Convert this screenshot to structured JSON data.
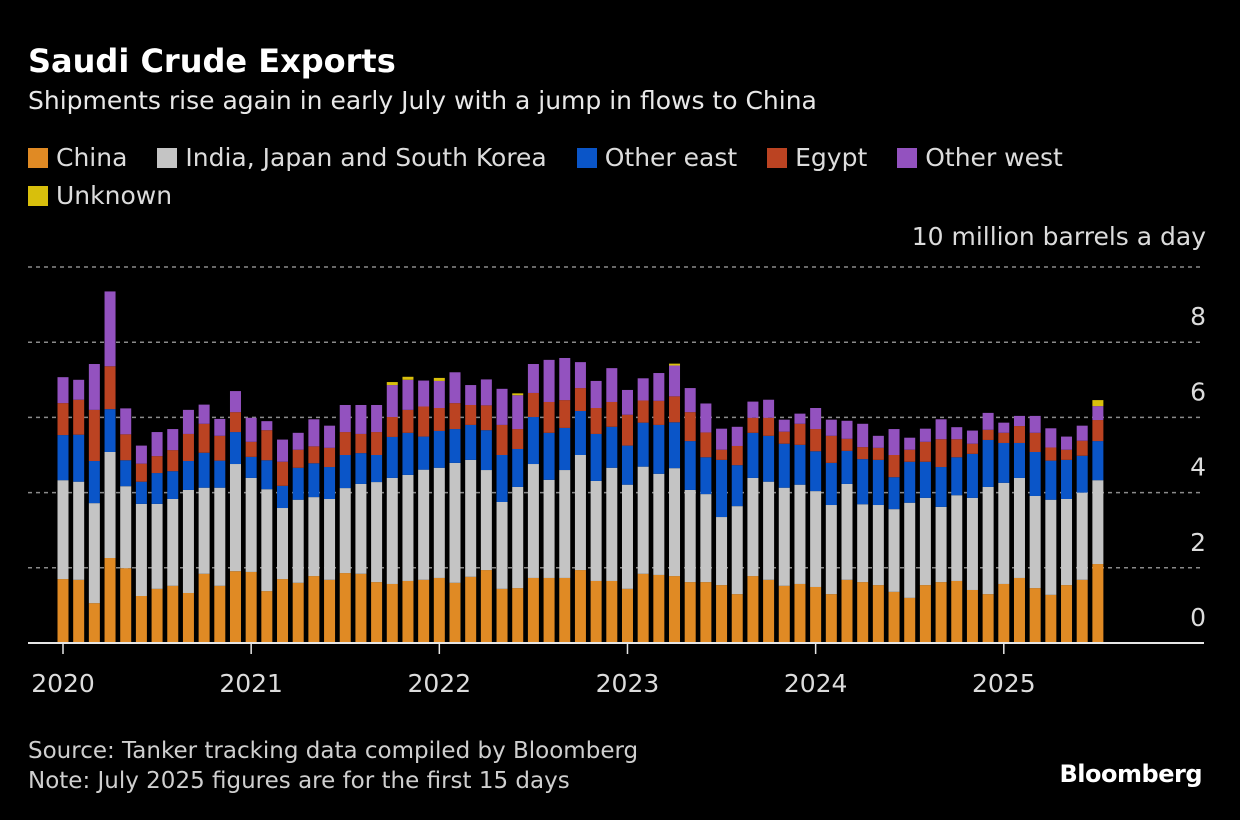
{
  "header": {
    "title": "Saudi Crude Exports",
    "subtitle": "Shipments rise again in early July with a jump in flows to China"
  },
  "legend": [
    {
      "label": "China",
      "color": "#e08a24"
    },
    {
      "label": "India, Japan and South Korea",
      "color": "#c4c4c4"
    },
    {
      "label": "Other east",
      "color": "#0a55c8"
    },
    {
      "label": "Egypt",
      "color": "#bb4322"
    },
    {
      "label": "Other west",
      "color": "#9352bf"
    },
    {
      "label": "Unknown",
      "color": "#d8bf0c"
    }
  ],
  "footer": {
    "source": "Source: Tanker tracking data compiled by Bloomberg",
    "note": "Note: July 2025 figures are for the first 15 days",
    "brand": "Bloomberg"
  },
  "chart_data": {
    "type": "bar",
    "stacked": true,
    "title": "Saudi Crude Exports",
    "subtitle": "Shipments rise again in early July with a jump in flows to China",
    "xlabel": "",
    "ylabel": "10 million barrels a day",
    "unit_label": "10 million barrels a day",
    "ylim": [
      0,
      10
    ],
    "yticks": [
      0,
      2,
      4,
      6,
      8,
      10
    ],
    "ytick_labels": [
      "0",
      "2",
      "4",
      "6",
      "8"
    ],
    "y_axis_side": "right",
    "grid": true,
    "legend_position": "top",
    "x_start": "2020-01",
    "x_end": "2025-07",
    "frequency": "monthly",
    "xtick_labels": [
      "2020",
      "2021",
      "2022",
      "2023",
      "2024",
      "2025"
    ],
    "categories": [
      "2020-01",
      "2020-02",
      "2020-03",
      "2020-04",
      "2020-05",
      "2020-06",
      "2020-07",
      "2020-08",
      "2020-09",
      "2020-10",
      "2020-11",
      "2020-12",
      "2021-01",
      "2021-02",
      "2021-03",
      "2021-04",
      "2021-05",
      "2021-06",
      "2021-07",
      "2021-08",
      "2021-09",
      "2021-10",
      "2021-11",
      "2021-12",
      "2022-01",
      "2022-02",
      "2022-03",
      "2022-04",
      "2022-05",
      "2022-06",
      "2022-07",
      "2022-08",
      "2022-09",
      "2022-10",
      "2022-11",
      "2022-12",
      "2023-01",
      "2023-02",
      "2023-03",
      "2023-04",
      "2023-05",
      "2023-06",
      "2023-07",
      "2023-08",
      "2023-09",
      "2023-10",
      "2023-11",
      "2023-12",
      "2024-01",
      "2024-02",
      "2024-03",
      "2024-04",
      "2024-05",
      "2024-06",
      "2024-07",
      "2024-08",
      "2024-09",
      "2024-10",
      "2024-11",
      "2024-12",
      "2025-01",
      "2025-02",
      "2025-03",
      "2025-04",
      "2025-05",
      "2025-06",
      "2025-07"
    ],
    "series": [
      {
        "name": "China",
        "color": "#e08a24",
        "values": [
          1.7,
          1.68,
          1.06,
          2.26,
          1.99,
          1.25,
          1.44,
          1.52,
          1.33,
          1.84,
          1.52,
          1.91,
          1.89,
          1.38,
          1.7,
          1.6,
          1.78,
          1.68,
          1.86,
          1.84,
          1.62,
          1.57,
          1.65,
          1.68,
          1.73,
          1.6,
          1.76,
          1.94,
          1.44,
          1.46,
          1.73,
          1.73,
          1.73,
          1.94,
          1.65,
          1.65,
          1.44,
          1.84,
          1.81,
          1.78,
          1.62,
          1.62,
          1.54,
          1.3,
          1.78,
          1.68,
          1.52,
          1.57,
          1.49,
          1.3,
          1.68,
          1.62,
          1.54,
          1.36,
          1.2,
          1.54,
          1.62,
          1.65,
          1.41,
          1.3,
          1.57,
          1.73,
          1.46,
          1.28,
          1.54,
          1.68,
          2.1
        ]
      },
      {
        "name": "India, Japan and South Korea",
        "color": "#c4c4c4",
        "values": [
          2.63,
          2.61,
          2.66,
          2.82,
          2.18,
          2.45,
          2.26,
          2.31,
          2.74,
          2.29,
          2.61,
          2.85,
          2.5,
          2.71,
          1.89,
          2.21,
          2.1,
          2.15,
          2.26,
          2.39,
          2.66,
          2.82,
          2.82,
          2.93,
          2.93,
          3.19,
          3.11,
          2.66,
          2.31,
          2.69,
          3.03,
          2.61,
          2.87,
          3.06,
          2.66,
          3.01,
          2.77,
          2.85,
          2.69,
          2.87,
          2.45,
          2.34,
          1.81,
          2.34,
          2.61,
          2.61,
          2.61,
          2.64,
          2.55,
          2.37,
          2.55,
          2.07,
          2.13,
          2.2,
          2.53,
          2.32,
          2.0,
          2.28,
          2.45,
          2.85,
          2.69,
          2.66,
          2.45,
          2.53,
          2.29,
          2.32,
          2.23
        ]
      },
      {
        "name": "Other east",
        "color": "#0a55c8",
        "values": [
          1.2,
          1.25,
          1.12,
          1.14,
          0.69,
          0.59,
          0.82,
          0.74,
          0.77,
          0.93,
          0.72,
          0.85,
          0.56,
          0.77,
          0.59,
          0.85,
          0.9,
          0.85,
          0.88,
          0.82,
          0.72,
          1.09,
          1.12,
          0.88,
          0.98,
          0.9,
          0.93,
          1.06,
          1.25,
          1.01,
          1.25,
          1.25,
          1.12,
          1.17,
          1.25,
          1.09,
          1.04,
          1.17,
          1.3,
          1.22,
          1.3,
          0.98,
          1.52,
          1.09,
          1.2,
          1.22,
          1.17,
          1.06,
          1.06,
          1.12,
          0.88,
          1.2,
          1.2,
          0.85,
          1.09,
          0.96,
          1.06,
          1.01,
          1.17,
          1.25,
          1.06,
          0.93,
          1.17,
          1.04,
          1.04,
          0.98,
          1.04
        ]
      },
      {
        "name": "Egypt",
        "color": "#bb4322",
        "values": [
          0.85,
          0.93,
          1.36,
          1.14,
          0.69,
          0.48,
          0.45,
          0.56,
          0.72,
          0.77,
          0.66,
          0.53,
          0.4,
          0.8,
          0.64,
          0.48,
          0.45,
          0.51,
          0.61,
          0.51,
          0.61,
          0.53,
          0.61,
          0.8,
          0.61,
          0.69,
          0.53,
          0.66,
          0.8,
          0.53,
          0.64,
          0.82,
          0.74,
          0.61,
          0.69,
          0.66,
          0.82,
          0.59,
          0.64,
          0.69,
          0.77,
          0.66,
          0.27,
          0.51,
          0.4,
          0.48,
          0.32,
          0.56,
          0.59,
          0.72,
          0.32,
          0.32,
          0.32,
          0.59,
          0.32,
          0.53,
          0.74,
          0.48,
          0.27,
          0.27,
          0.27,
          0.45,
          0.51,
          0.35,
          0.27,
          0.4,
          0.56
        ]
      },
      {
        "name": "Other west",
        "color": "#9352bf",
        "values": [
          0.69,
          0.53,
          1.22,
          1.99,
          0.69,
          0.48,
          0.64,
          0.56,
          0.64,
          0.51,
          0.45,
          0.56,
          0.64,
          0.24,
          0.59,
          0.45,
          0.72,
          0.59,
          0.72,
          0.77,
          0.72,
          0.85,
          0.8,
          0.69,
          0.72,
          0.82,
          0.53,
          0.69,
          0.96,
          0.9,
          0.77,
          1.12,
          1.12,
          0.69,
          0.72,
          0.9,
          0.66,
          0.59,
          0.74,
          0.82,
          0.64,
          0.77,
          0.56,
          0.51,
          0.43,
          0.48,
          0.32,
          0.27,
          0.56,
          0.43,
          0.48,
          0.62,
          0.32,
          0.69,
          0.32,
          0.35,
          0.53,
          0.32,
          0.35,
          0.45,
          0.27,
          0.27,
          0.45,
          0.51,
          0.35,
          0.4,
          0.37
        ]
      },
      {
        "name": "Unknown",
        "color": "#d8bf0c",
        "values": [
          0,
          0,
          0,
          0,
          0,
          0,
          0,
          0,
          0,
          0,
          0,
          0,
          0,
          0,
          0,
          0,
          0,
          0,
          0,
          0,
          0,
          0.08,
          0.08,
          0,
          0.08,
          0,
          0,
          0,
          0,
          0.05,
          0,
          0,
          0,
          0,
          0,
          0,
          0,
          0,
          0,
          0.05,
          0,
          0,
          0,
          0,
          0,
          0,
          0,
          0,
          0,
          0,
          0,
          0,
          0,
          0,
          0,
          0,
          0,
          0,
          0,
          0,
          0,
          0,
          0,
          0,
          0,
          0,
          0.16
        ]
      }
    ]
  }
}
